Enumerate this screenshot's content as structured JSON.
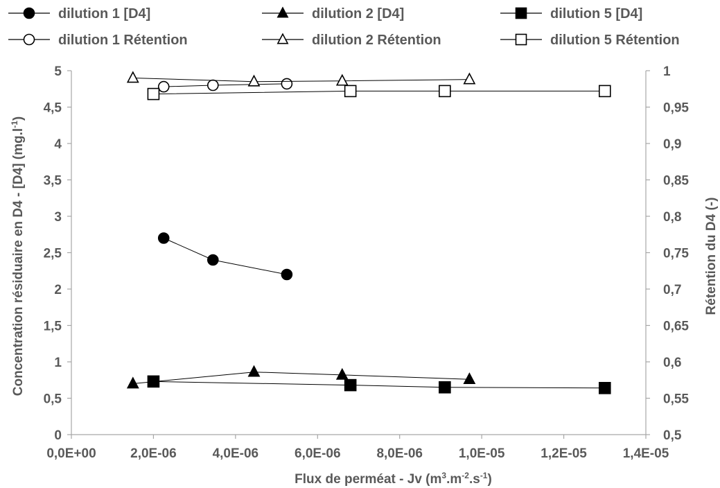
{
  "chart_data": {
    "type": "scatter",
    "x_axis": {
      "label": "Flux de perméat - Jv (m",
      "label_parts": [
        "Flux de perméat - Jv (m",
        "3",
        ".m",
        "-2",
        ".s",
        "-1",
        ")"
      ],
      "range": [
        0,
        1.4e-05
      ],
      "ticks": [
        0,
        2e-06,
        4e-06,
        6e-06,
        8e-06,
        1e-05,
        1.2e-05,
        1.4e-05
      ],
      "tick_labels": [
        "0,0E+00",
        "2,0E-06",
        "4,0E-06",
        "6,0E-06",
        "8,0E-06",
        "1,0E-05",
        "1,2E-05",
        "1,4E-05"
      ]
    },
    "y_axis_left": {
      "label_parts": [
        "Concentration résiduaire en D4 - [D4] (mg.l",
        "-1",
        ")"
      ],
      "range": [
        0,
        5
      ],
      "ticks": [
        0,
        0.5,
        1,
        1.5,
        2,
        2.5,
        3,
        3.5,
        4,
        4.5,
        5
      ],
      "tick_labels": [
        "0",
        "0,5",
        "1",
        "1,5",
        "2",
        "2,5",
        "3",
        "3,5",
        "4",
        "4,5",
        "5"
      ]
    },
    "y_axis_right": {
      "label": "Rétention du D4  (-)",
      "range": [
        0.5,
        1
      ],
      "ticks": [
        0.5,
        0.55,
        0.6,
        0.65,
        0.7,
        0.75,
        0.8,
        0.85,
        0.9,
        0.95,
        1
      ],
      "tick_labels": [
        "0,5",
        "0,55",
        "0,6",
        "0,65",
        "0,7",
        "0,75",
        "0,8",
        "0,85",
        "0,9",
        "0,95",
        "1"
      ]
    },
    "grid": false,
    "legend_position": "top",
    "series": [
      {
        "name": "dilution 1 [D4]",
        "marker": "circle",
        "filled": true,
        "axis": "left",
        "x": [
          2.25e-06,
          3.45e-06,
          5.25e-06
        ],
        "y": [
          2.7,
          2.4,
          2.2
        ]
      },
      {
        "name": "dilution 2 [D4]",
        "marker": "triangle",
        "filled": true,
        "axis": "left",
        "x": [
          1.5e-06,
          4.45e-06,
          6.6e-06,
          9.7e-06
        ],
        "y": [
          0.7,
          0.86,
          0.82,
          0.76
        ]
      },
      {
        "name": "dilution 5 [D4]",
        "marker": "square",
        "filled": true,
        "axis": "left",
        "x": [
          2e-06,
          6.8e-06,
          9.1e-06,
          1.3e-05
        ],
        "y": [
          0.73,
          0.68,
          0.65,
          0.64
        ]
      },
      {
        "name": "dilution 1 Rétention",
        "marker": "circle",
        "filled": false,
        "axis": "right",
        "x": [
          2.25e-06,
          3.45e-06,
          5.25e-06
        ],
        "y": [
          0.978,
          0.98,
          0.982
        ]
      },
      {
        "name": "dilution 2 Rétention",
        "marker": "triangle",
        "filled": false,
        "axis": "right",
        "x": [
          1.5e-06,
          4.45e-06,
          6.6e-06,
          9.7e-06
        ],
        "y": [
          0.99,
          0.985,
          0.986,
          0.988
        ]
      },
      {
        "name": "dilution 5 Rétention",
        "marker": "square",
        "filled": false,
        "axis": "right",
        "x": [
          2e-06,
          6.8e-06,
          9.1e-06,
          1.3e-05
        ],
        "y": [
          0.968,
          0.972,
          0.972,
          0.972
        ]
      }
    ]
  }
}
